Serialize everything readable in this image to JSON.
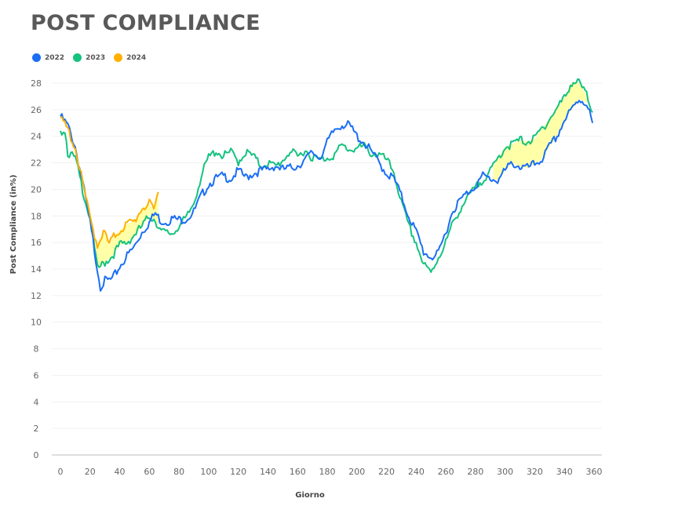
{
  "chart_data": {
    "type": "line",
    "title": "POST COMPLIANCE",
    "xlabel": "Giorno",
    "ylabel": "Post Compliance (in%)",
    "xlim": [
      0,
      360
    ],
    "ylim": [
      0,
      28
    ],
    "xticks": [
      0,
      20,
      40,
      60,
      80,
      100,
      120,
      140,
      160,
      180,
      200,
      220,
      240,
      260,
      280,
      300,
      320,
      340,
      360
    ],
    "yticks": [
      0,
      2,
      4,
      6,
      8,
      10,
      12,
      14,
      16,
      18,
      20,
      22,
      24,
      26,
      28
    ],
    "grid": "horizontal",
    "legend_position": "top-left",
    "fill_between": {
      "color": "#ffff99",
      "note": "shaded where 2024 above 2023, and where 2023 above 2022"
    },
    "series": [
      {
        "name": "2022",
        "color": "#1a6ef5",
        "x": [
          0,
          5,
          10,
          15,
          20,
          25,
          27,
          30,
          35,
          40,
          45,
          50,
          55,
          60,
          64,
          68,
          72,
          76,
          80,
          85,
          90,
          95,
          100,
          105,
          110,
          115,
          120,
          125,
          130,
          135,
          140,
          145,
          150,
          155,
          160,
          165,
          170,
          175,
          180,
          185,
          190,
          195,
          200,
          205,
          210,
          215,
          220,
          225,
          230,
          235,
          240,
          245,
          250,
          255,
          260,
          265,
          270,
          275,
          280,
          285,
          290,
          295,
          300,
          305,
          310,
          315,
          320,
          325,
          330,
          335,
          340,
          345,
          350,
          355,
          359
        ],
        "y": [
          25.5,
          24.8,
          23.2,
          20.5,
          17.5,
          14.0,
          12.7,
          13.1,
          13.2,
          14.2,
          15.0,
          15.7,
          16.8,
          17.5,
          18.2,
          17.6,
          17.6,
          17.8,
          17.7,
          17.8,
          18.3,
          19.5,
          20.4,
          20.8,
          21.0,
          20.8,
          21.4,
          20.9,
          21.2,
          21.4,
          21.5,
          21.8,
          21.5,
          21.6,
          21.8,
          22.2,
          22.8,
          22.4,
          23.5,
          24.5,
          24.9,
          24.8,
          24.0,
          23.5,
          22.8,
          22.0,
          21.2,
          20.8,
          19.5,
          18.0,
          16.8,
          15.3,
          14.9,
          15.1,
          16.8,
          18.5,
          19.2,
          19.8,
          20.3,
          21.0,
          20.8,
          20.7,
          21.4,
          22.0,
          21.7,
          21.6,
          21.9,
          22.3,
          23.2,
          24.0,
          25.2,
          26.0,
          26.8,
          26.5,
          25.0
        ]
      },
      {
        "name": "2023",
        "color": "#15c27f",
        "x": [
          0,
          3,
          5,
          10,
          15,
          20,
          25,
          30,
          35,
          40,
          45,
          50,
          55,
          60,
          64,
          68,
          72,
          76,
          80,
          85,
          90,
          95,
          100,
          105,
          110,
          115,
          120,
          125,
          130,
          135,
          140,
          145,
          150,
          155,
          160,
          165,
          170,
          175,
          180,
          185,
          190,
          195,
          200,
          205,
          210,
          215,
          220,
          225,
          230,
          235,
          240,
          245,
          250,
          255,
          260,
          265,
          270,
          275,
          280,
          285,
          290,
          295,
          300,
          305,
          310,
          315,
          320,
          325,
          330,
          335,
          340,
          345,
          350,
          355,
          359
        ],
        "y": [
          24.4,
          24.5,
          22.8,
          22.3,
          20.0,
          17.8,
          14.0,
          14.5,
          15.0,
          15.8,
          16.0,
          16.6,
          17.2,
          18.0,
          17.7,
          16.8,
          16.7,
          16.7,
          17.3,
          17.8,
          19.0,
          21.0,
          22.4,
          22.9,
          22.5,
          22.8,
          22.1,
          22.8,
          22.5,
          21.8,
          22.0,
          21.7,
          22.2,
          22.9,
          22.4,
          23.0,
          22.4,
          22.2,
          22.4,
          22.6,
          23.3,
          23.0,
          23.1,
          23.2,
          22.7,
          22.6,
          22.2,
          21.3,
          19.0,
          17.2,
          16.0,
          14.3,
          13.7,
          14.9,
          16.0,
          17.5,
          18.6,
          19.4,
          20.1,
          20.8,
          21.3,
          22.3,
          23.2,
          23.4,
          23.7,
          23.6,
          23.8,
          24.6,
          25.3,
          26.1,
          26.9,
          28.1,
          28.0,
          27.1,
          25.8
        ]
      },
      {
        "name": "2024",
        "color": "#ffb000",
        "x": [
          0,
          5,
          10,
          15,
          20,
          25,
          28,
          30,
          33,
          35,
          40,
          45,
          50,
          55,
          60,
          63,
          66
        ],
        "y": [
          25.4,
          24.5,
          23.1,
          20.5,
          17.8,
          15.8,
          16.6,
          16.7,
          15.8,
          16.3,
          16.9,
          17.4,
          17.6,
          18.6,
          18.9,
          18.4,
          19.8
        ]
      }
    ]
  }
}
